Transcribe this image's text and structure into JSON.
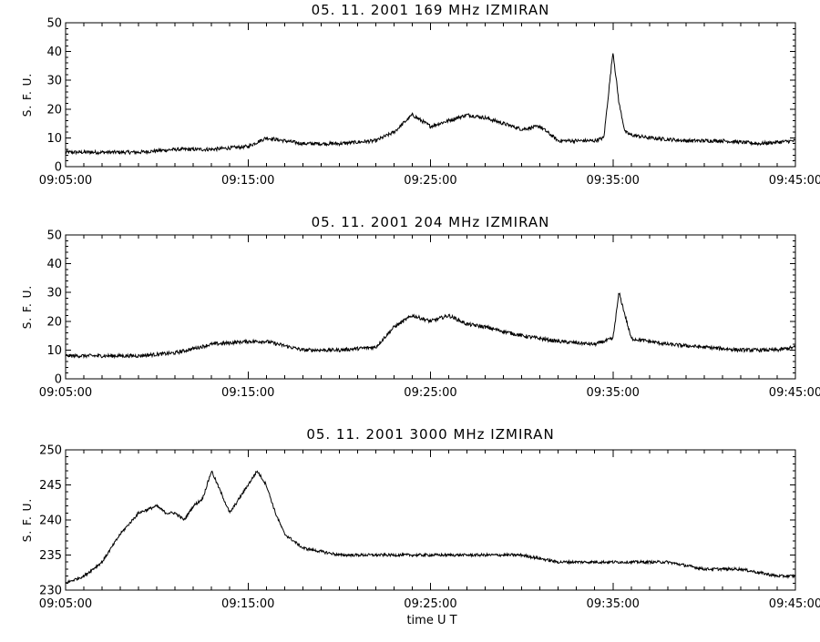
{
  "figure": {
    "xlabel": "time   U T"
  },
  "chart_data": [
    {
      "type": "line",
      "title": "05.  11.  2001    169  MHz    IZMIRAN",
      "ylabel": "S. F. U.",
      "xlim": [
        "09:05:00",
        "09:45:00"
      ],
      "ylim": [
        0,
        50
      ],
      "yticks": [
        0,
        10,
        20,
        30,
        40,
        50
      ],
      "xticks": [
        "09:05:00",
        "09:15:00",
        "09:25:00",
        "09:35:00",
        "09:45:00"
      ],
      "series": [
        {
          "x": [
            "09:05:00",
            "09:07:00",
            "09:09:00",
            "09:11:00",
            "09:13:00",
            "09:15:00",
            "09:16:00",
            "09:18:00",
            "09:20:00",
            "09:22:00",
            "09:23:00",
            "09:24:00",
            "09:25:00",
            "09:26:00",
            "09:27:00",
            "09:28:00",
            "09:30:00",
            "09:31:00",
            "09:32:00",
            "09:33:00",
            "09:34:00",
            "09:34:30",
            "09:35:00",
            "09:35:20",
            "09:35:40",
            "09:36:00",
            "09:37:00",
            "09:39:00",
            "09:41:00",
            "09:43:00",
            "09:45:00"
          ],
          "y": [
            5,
            5,
            5,
            6,
            6,
            7,
            10,
            8,
            8,
            9,
            12,
            18,
            14,
            16,
            18,
            17,
            13,
            14,
            9,
            9,
            9,
            10,
            40,
            22,
            12,
            11,
            10,
            9,
            9,
            8,
            9
          ]
        }
      ]
    },
    {
      "type": "line",
      "title": "05.  11.  2001    204  MHz    IZMIRAN",
      "ylabel": "S. F. U.",
      "xlim": [
        "09:05:00",
        "09:45:00"
      ],
      "ylim": [
        0,
        50
      ],
      "yticks": [
        0,
        10,
        20,
        30,
        40,
        50
      ],
      "xticks": [
        "09:05:00",
        "09:15:00",
        "09:25:00",
        "09:35:00",
        "09:45:00"
      ],
      "series": [
        {
          "x": [
            "09:05:00",
            "09:07:00",
            "09:09:00",
            "09:11:00",
            "09:13:00",
            "09:15:00",
            "09:16:00",
            "09:18:00",
            "09:20:00",
            "09:22:00",
            "09:23:00",
            "09:24:00",
            "09:25:00",
            "09:26:00",
            "09:27:00",
            "09:28:00",
            "09:30:00",
            "09:32:00",
            "09:34:00",
            "09:35:00",
            "09:35:20",
            "09:36:00",
            "09:38:00",
            "09:40:00",
            "09:42:00",
            "09:44:00",
            "09:45:00"
          ],
          "y": [
            8,
            8,
            8,
            9,
            12,
            13,
            13,
            10,
            10,
            11,
            18,
            22,
            20,
            22,
            19,
            18,
            15,
            13,
            12,
            14,
            30,
            14,
            12,
            11,
            10,
            10,
            11
          ]
        }
      ]
    },
    {
      "type": "line",
      "title": "05.  11.  2001    3000  MHz    IZMIRAN",
      "ylabel": "S. F. U.",
      "xlim": [
        "09:05:00",
        "09:45:00"
      ],
      "ylim": [
        230,
        250
      ],
      "yticks": [
        230,
        235,
        240,
        245,
        250
      ],
      "xticks": [
        "09:05:00",
        "09:15:00",
        "09:25:00",
        "09:35:00",
        "09:45:00"
      ],
      "series": [
        {
          "x": [
            "09:05:00",
            "09:06:00",
            "09:07:00",
            "09:08:00",
            "09:09:00",
            "09:10:00",
            "09:10:30",
            "09:11:00",
            "09:11:30",
            "09:12:00",
            "09:12:30",
            "09:13:00",
            "09:13:30",
            "09:14:00",
            "09:14:30",
            "09:15:00",
            "09:15:30",
            "09:16:00",
            "09:16:30",
            "09:17:00",
            "09:18:00",
            "09:20:00",
            "09:22:00",
            "09:24:00",
            "09:26:00",
            "09:28:00",
            "09:30:00",
            "09:32:00",
            "09:34:00",
            "09:36:00",
            "09:38:00",
            "09:40:00",
            "09:42:00",
            "09:44:00",
            "09:45:00"
          ],
          "y": [
            231,
            232,
            234,
            238,
            241,
            242,
            241,
            241,
            240,
            242,
            243,
            247,
            244,
            241,
            243,
            245,
            247,
            245,
            241,
            238,
            236,
            235,
            235,
            235,
            235,
            235,
            235,
            234,
            234,
            234,
            234,
            233,
            233,
            232,
            232
          ]
        }
      ]
    }
  ]
}
